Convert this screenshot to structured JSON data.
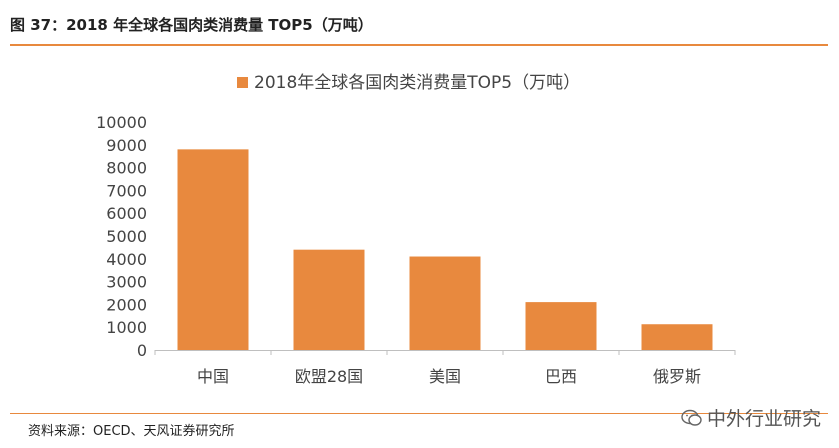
{
  "figure": {
    "title": "图 37：2018 年全球各国肉类消费量 TOP5（万吨）",
    "source": "资料来源：OECD、天风证券研究所",
    "watermark": "中外行业研究"
  },
  "colors": {
    "bar": "#e8893e",
    "accent": "#e8893e"
  },
  "chart_data": {
    "type": "bar",
    "title": "",
    "xlabel": "",
    "ylabel": "",
    "categories": [
      "中国",
      "欧盟28国",
      "美国",
      "巴西",
      "俄罗斯"
    ],
    "series": [
      {
        "name": "2018年全球各国肉类消费量TOP5（万吨）",
        "values": [
          8800,
          4400,
          4100,
          2100,
          1130
        ]
      }
    ],
    "ylim": [
      0,
      10000
    ],
    "yticks": [
      0,
      1000,
      2000,
      3000,
      4000,
      5000,
      6000,
      7000,
      8000,
      9000,
      10000
    ],
    "grid": false,
    "legend": "top-center"
  }
}
